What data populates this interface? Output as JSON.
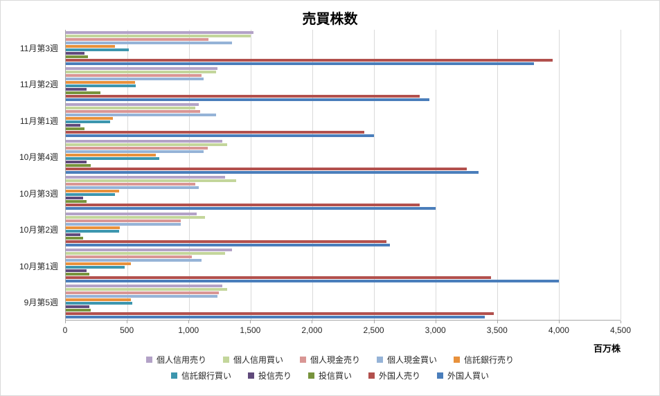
{
  "chart_data": {
    "type": "bar",
    "orientation": "horizontal",
    "title": "売買株数",
    "unit_label": "百万株",
    "categories": [
      "11月第3週",
      "11月第2週",
      "11月第1週",
      "10月第4週",
      "10月第3週",
      "10月第2週",
      "10月第1週",
      "9月第5週"
    ],
    "xlim": [
      0,
      4500
    ],
    "xtick_interval": 500,
    "xtick_labels": [
      "0",
      "500",
      "1,000",
      "1,500",
      "2,000",
      "2,500",
      "3,000",
      "3,500",
      "4,000",
      "4,500"
    ],
    "grid": true,
    "legend_position": "bottom",
    "legend_rows": 2,
    "axis_color": "#a6a6a6",
    "gridline_color": "#d9d9d9",
    "series": [
      {
        "name": "個人信用売り",
        "color": "#B3A2C7",
        "values": [
          1520,
          1230,
          1080,
          1270,
          1290,
          1060,
          1350,
          1270
        ]
      },
      {
        "name": "個人信用買い",
        "color": "#C3D69B",
        "values": [
          1500,
          1220,
          1050,
          1310,
          1380,
          1130,
          1290,
          1310
        ]
      },
      {
        "name": "個人現金売り",
        "color": "#D99694",
        "values": [
          1160,
          1100,
          1090,
          1150,
          1050,
          930,
          1020,
          1240
        ]
      },
      {
        "name": "個人現金買い",
        "color": "#95B3D7",
        "values": [
          1350,
          1120,
          1220,
          1120,
          1080,
          930,
          1100,
          1230
        ]
      },
      {
        "name": "信託銀行売り",
        "color": "#E8913C",
        "values": [
          400,
          560,
          380,
          730,
          430,
          440,
          530,
          530
        ]
      },
      {
        "name": "信託銀行買い",
        "color": "#3D96AE",
        "values": [
          510,
          570,
          360,
          760,
          400,
          430,
          480,
          540
        ]
      },
      {
        "name": "投信売り",
        "color": "#604A7B",
        "values": [
          150,
          170,
          120,
          170,
          140,
          120,
          170,
          190
        ]
      },
      {
        "name": "投信買い",
        "color": "#77933C",
        "values": [
          180,
          280,
          150,
          200,
          170,
          140,
          190,
          200
        ]
      },
      {
        "name": "外国人売り",
        "color": "#B2504D",
        "values": [
          3950,
          2870,
          2420,
          3250,
          2870,
          2600,
          3450,
          3470
        ]
      },
      {
        "name": "外国人買い",
        "color": "#4A7EBB",
        "values": [
          3800,
          2950,
          2500,
          3350,
          3000,
          2630,
          4000,
          3400
        ]
      }
    ]
  }
}
